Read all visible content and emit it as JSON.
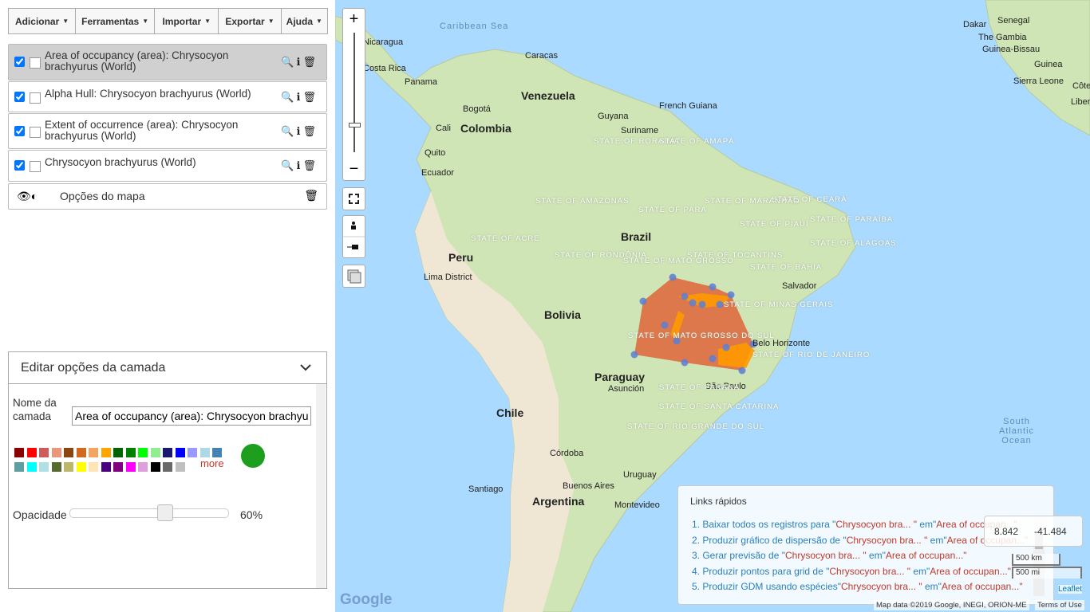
{
  "menu": [
    "Adicionar",
    "Ferramentas",
    "Importar",
    "Exportar",
    "Ajuda"
  ],
  "layers": [
    {
      "name": "Area of occupancy (area): Chrysocyon brachyurus (World)",
      "selected": true
    },
    {
      "name": "Alpha Hull: Chrysocyon brachyurus (World)",
      "selected": false
    },
    {
      "name": "Extent of occurrence (area): Chrysocyon brachyurus (World)",
      "selected": false
    },
    {
      "name": "Chrysocyon brachyurus (World)",
      "selected": false
    }
  ],
  "map_options": "Opções do mapa",
  "edit_panel": {
    "title": "Editar opções da camada",
    "name_label": "Nome da camada",
    "name_value": "Area of occupancy (area): Chrysocyon brachyurus (World)",
    "swatches": [
      "#8b0000",
      "#ff0000",
      "#cd5c5c",
      "#e9967a",
      "#8b4513",
      "#d2691e",
      "#f4a460",
      "#ffa500",
      "#006400",
      "#008000",
      "#00ff00",
      "#90ee90",
      "#191970",
      "#0000ff",
      "#9999ff",
      "#add8e6",
      "#4682b4",
      "#5f9ea0",
      "#00ffff",
      "#b0e0e6",
      "#556b2f",
      "#bdb76b",
      "#ffff00",
      "#ffe4b5",
      "#4b0082",
      "#800080",
      "#ff00ff",
      "#dda0dd",
      "#000000",
      "#696969",
      "#c0c0c0"
    ],
    "more": "more",
    "selected_color": "#1e9e1e",
    "opacity_label": "Opacidade",
    "opacity_value": "60%"
  },
  "map": {
    "zoom_in": "+",
    "zoom_out": "−",
    "labels": [
      "Caribbean Sea",
      "Nicaragua",
      "Costa Rica",
      "Panama",
      "Caracas",
      "Venezuela",
      "Bogotá",
      "Colombia",
      "Cali",
      "Quito",
      "Ecuador",
      "Guyana",
      "Suriname",
      "French Guiana",
      "STATE OF RORAIMA",
      "STATE OF AMAPÁ",
      "STATE OF AMAZONAS",
      "STATE OF PARA",
      "STATE OF MARANHÃO",
      "STATE OF CEARÁ",
      "STATE OF PIAUÍ",
      "STATE OF PARAÍBA",
      "STATE OF ACRE",
      "Brazil",
      "STATE OF ALAGOAS",
      "Peru",
      "STATE OF RONDÔNIA",
      "STATE OF TOCANTINS",
      "Lima District",
      "STATE OF MATO GROSSO",
      "STATE OF BAHIA",
      "Salvador",
      "Bolivia",
      "STATE OF MINAS GERAIS",
      "STATE OF MATO GROSSO DO SUL",
      "Belo Horizonte",
      "STATE OF RIO DE JANEIRO",
      "Paraguay",
      "Asunción",
      "São Paulo",
      "STATE OF PARANÁ",
      "Chile",
      "STATE OF SANTA CATARINA",
      "STATE OF RIO GRANDE DO SUL",
      "Córdoba",
      "Uruguay",
      "Santiago",
      "Buenos Aires",
      "Argentina",
      "Montevideo",
      "South Atlantic Ocean",
      "Dakar",
      "Senegal",
      "The Gambia",
      "Guinea-Bissau",
      "Guinea",
      "Sierra Leone",
      "Liberia",
      "Côte"
    ],
    "quick_links": {
      "title": "Links rápidos",
      "items": [
        {
          "lead": "1. Baixar todos os registros para \"",
          "species": "Chrysocyon bra... \"",
          "mid": " em\"",
          "layer": "Area of occupan...\""
        },
        {
          "lead": "2. Produzir gráfico de dispersão de \"",
          "species": "Chrysocyon bra... \"",
          "mid": " em\"",
          "layer": "Area of occupan...\""
        },
        {
          "lead": "3. Gerar previsão de \"",
          "species": "Chrysocyon bra... \"",
          "mid": " em\"",
          "layer": "Area of occupan...\""
        },
        {
          "lead": "4. Produzir pontos para grid de \"",
          "species": "Chrysocyon bra... \"",
          "mid": " em\"",
          "layer": "Area of occupan...\""
        },
        {
          "lead": "5. Produzir GDM usando espécies\"",
          "species": "Chrysocyon bra... \"",
          "mid": " em\"",
          "layer": "Area of occupan...\""
        }
      ]
    },
    "coords": [
      "8.842",
      "-41.484"
    ],
    "scale": [
      "500 km",
      "500 mi"
    ],
    "google": "Google",
    "attribution": "Map data ©2019 Google, INEGI, ORION-ME",
    "terms": "Terms of Use",
    "leaflet": "Leaflet"
  }
}
